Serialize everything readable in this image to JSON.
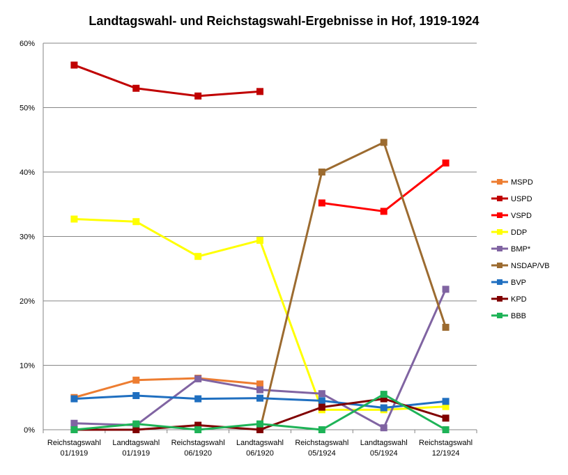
{
  "chart_data": {
    "type": "line",
    "title": "Landtagswahl-  und Reichstagswahl-Ergebnisse  in Hof, 1919-1924",
    "categories": [
      [
        "Reichstagswahl",
        "01/1919"
      ],
      [
        "Landtagswahl",
        "01/1919"
      ],
      [
        "Reichstagswahl",
        "06/1920"
      ],
      [
        "Landtagswahl",
        "06/1920"
      ],
      [
        "Reichstagswahl",
        "05/1924"
      ],
      [
        "Landtagswahl",
        "05/1924"
      ],
      [
        "Reichstagswahl",
        "12/1924"
      ]
    ],
    "ylim": [
      0,
      60
    ],
    "yticks": [
      "0%",
      "10%",
      "20%",
      "30%",
      "40%",
      "50%",
      "60%"
    ],
    "grid": true,
    "legend_position": "right",
    "series": [
      {
        "name": "MSPD",
        "color": "#ED7D31",
        "values": [
          5.0,
          7.7,
          8.0,
          7.1,
          null,
          null,
          null
        ]
      },
      {
        "name": "USPD",
        "color": "#C00000",
        "values": [
          56.6,
          53.0,
          51.8,
          52.5,
          null,
          null,
          null
        ]
      },
      {
        "name": "VSPD",
        "color": "#FF0000",
        "values": [
          null,
          null,
          null,
          null,
          35.2,
          33.9,
          41.4
        ]
      },
      {
        "name": "DDP",
        "color": "#FFFF00",
        "values": [
          32.7,
          32.3,
          26.9,
          29.4,
          3.1,
          3.1,
          3.6
        ]
      },
      {
        "name": "BMP*",
        "color": "#8064A2",
        "values": [
          1.0,
          0.7,
          7.9,
          6.2,
          5.6,
          0.3,
          21.8
        ]
      },
      {
        "name": "NSDAP/VB",
        "color": "#9C6B30",
        "values": [
          null,
          null,
          null,
          0.0,
          40.0,
          44.6,
          15.9
        ]
      },
      {
        "name": "BVP",
        "color": "#1F6FC0",
        "values": [
          4.8,
          5.3,
          4.8,
          4.9,
          4.5,
          3.4,
          4.4
        ]
      },
      {
        "name": "KPD",
        "color": "#800000",
        "values": [
          0.0,
          0.0,
          0.7,
          0.0,
          3.5,
          4.8,
          1.8
        ]
      },
      {
        "name": "BBB",
        "color": "#1EB357",
        "values": [
          0.0,
          0.9,
          0.0,
          0.9,
          0.0,
          5.5,
          0.0
        ]
      }
    ]
  }
}
